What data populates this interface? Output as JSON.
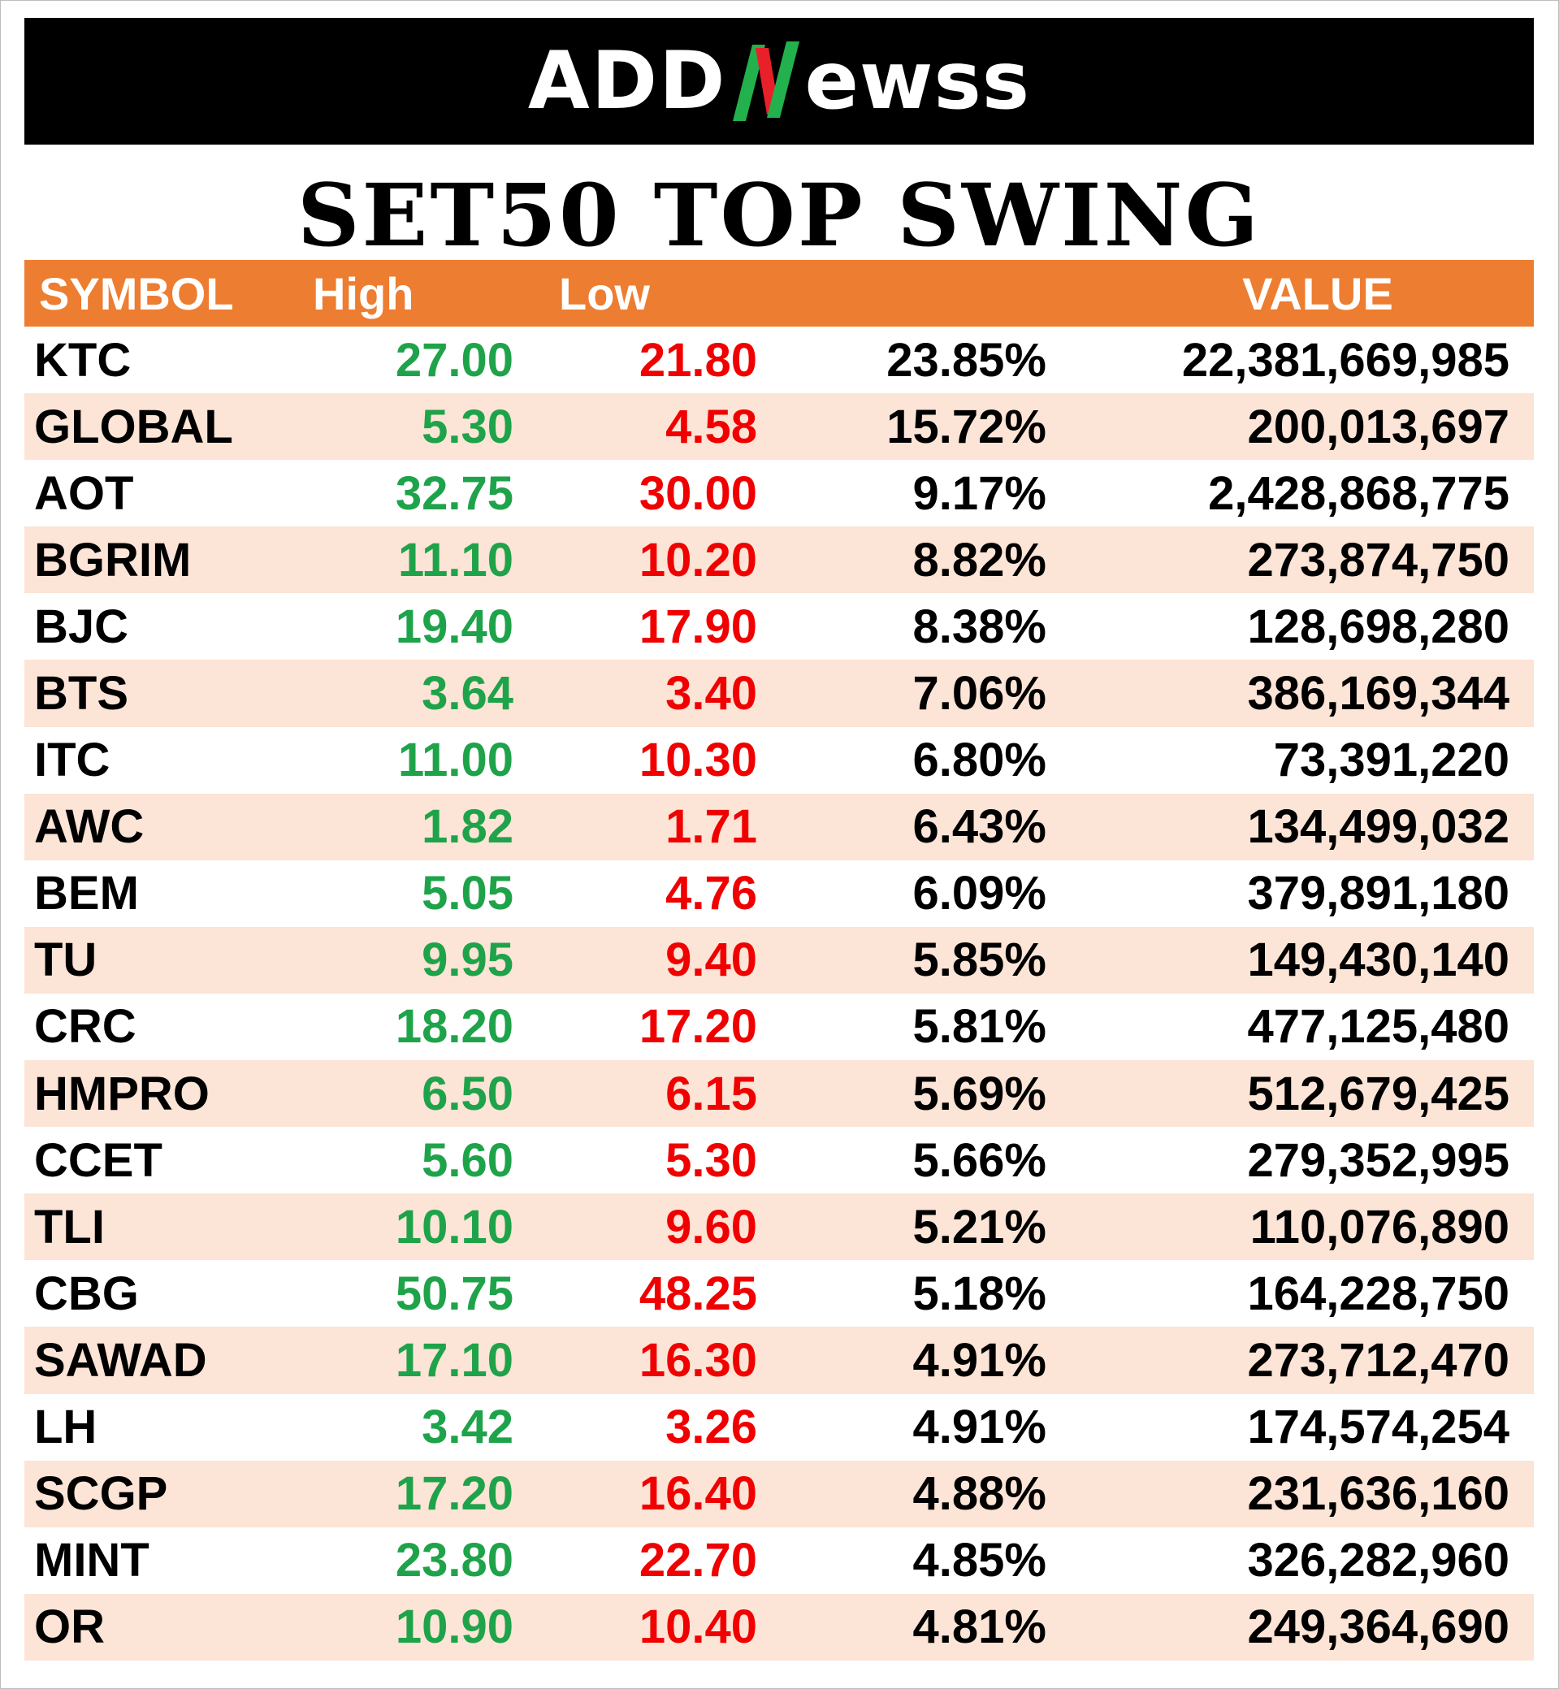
{
  "brand": {
    "left": "ADD",
    "right": "ewss",
    "colors": {
      "background": "#000000",
      "text": "#ffffff",
      "mark_green": "#22B14C",
      "mark_red": "#E8202A"
    }
  },
  "title": "SET50 TOP SWING",
  "table": {
    "headers": {
      "symbol": "SYMBOL",
      "high": "High",
      "low": "Low",
      "pct": "",
      "value": "VALUE"
    },
    "colors": {
      "header_bg": "#ED7D31",
      "stripe": "#FCE4D6",
      "high": "#1FA34A",
      "low": "#F00000"
    },
    "rows": [
      {
        "symbol": "KTC",
        "high": "27.00",
        "low": "21.80",
        "pct": "23.85%",
        "value": "22,381,669,985"
      },
      {
        "symbol": "GLOBAL",
        "high": "5.30",
        "low": "4.58",
        "pct": "15.72%",
        "value": "200,013,697"
      },
      {
        "symbol": "AOT",
        "high": "32.75",
        "low": "30.00",
        "pct": "9.17%",
        "value": "2,428,868,775"
      },
      {
        "symbol": "BGRIM",
        "high": "11.10",
        "low": "10.20",
        "pct": "8.82%",
        "value": "273,874,750"
      },
      {
        "symbol": "BJC",
        "high": "19.40",
        "low": "17.90",
        "pct": "8.38%",
        "value": "128,698,280"
      },
      {
        "symbol": "BTS",
        "high": "3.64",
        "low": "3.40",
        "pct": "7.06%",
        "value": "386,169,344"
      },
      {
        "symbol": "ITC",
        "high": "11.00",
        "low": "10.30",
        "pct": "6.80%",
        "value": "73,391,220"
      },
      {
        "symbol": "AWC",
        "high": "1.82",
        "low": "1.71",
        "pct": "6.43%",
        "value": "134,499,032"
      },
      {
        "symbol": "BEM",
        "high": "5.05",
        "low": "4.76",
        "pct": "6.09%",
        "value": "379,891,180"
      },
      {
        "symbol": "TU",
        "high": "9.95",
        "low": "9.40",
        "pct": "5.85%",
        "value": "149,430,140"
      },
      {
        "symbol": "CRC",
        "high": "18.20",
        "low": "17.20",
        "pct": "5.81%",
        "value": "477,125,480"
      },
      {
        "symbol": "HMPRO",
        "high": "6.50",
        "low": "6.15",
        "pct": "5.69%",
        "value": "512,679,425"
      },
      {
        "symbol": "CCET",
        "high": "5.60",
        "low": "5.30",
        "pct": "5.66%",
        "value": "279,352,995"
      },
      {
        "symbol": "TLI",
        "high": "10.10",
        "low": "9.60",
        "pct": "5.21%",
        "value": "110,076,890"
      },
      {
        "symbol": "CBG",
        "high": "50.75",
        "low": "48.25",
        "pct": "5.18%",
        "value": "164,228,750"
      },
      {
        "symbol": "SAWAD",
        "high": "17.10",
        "low": "16.30",
        "pct": "4.91%",
        "value": "273,712,470"
      },
      {
        "symbol": "LH",
        "high": "3.42",
        "low": "3.26",
        "pct": "4.91%",
        "value": "174,574,254"
      },
      {
        "symbol": "SCGP",
        "high": "17.20",
        "low": "16.40",
        "pct": "4.88%",
        "value": "231,636,160"
      },
      {
        "symbol": "MINT",
        "high": "23.80",
        "low": "22.70",
        "pct": "4.85%",
        "value": "326,282,960"
      },
      {
        "symbol": "OR",
        "high": "10.90",
        "low": "10.40",
        "pct": "4.81%",
        "value": "249,364,690"
      }
    ]
  }
}
